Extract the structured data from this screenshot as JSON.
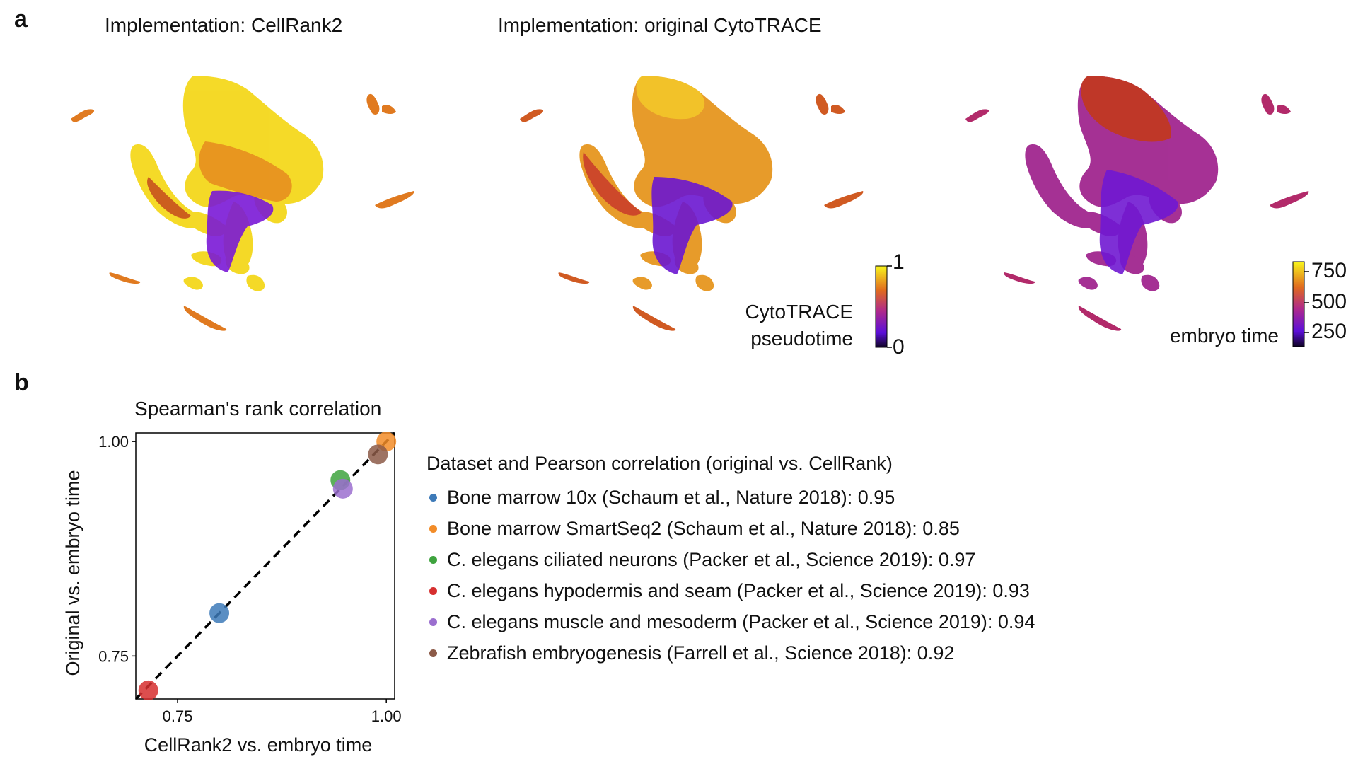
{
  "panel_a": {
    "letter": "a",
    "title_left": "Implementation: CellRank2",
    "title_mid": "Implementation: original CytoTRACE",
    "colorbar_pseudotime": {
      "label_line1": "CytoTRACE",
      "label_line2": "pseudotime",
      "tick_max": "1",
      "tick_min": "0"
    },
    "colorbar_embryo": {
      "label": "embryo time",
      "ticks": [
        "750",
        "500",
        "250"
      ]
    }
  },
  "panel_b": {
    "letter": "b",
    "legend_title": "Dataset and Pearson correlation (original vs. CellRank)",
    "legend_items": [
      {
        "label": "Bone marrow 10x (Schaum et al., Nature 2018): 0.95",
        "color": "#3d7ab8"
      },
      {
        "label": "Bone marrow SmartSeq2 (Schaum et al., Nature 2018): 0.85",
        "color": "#f28c28"
      },
      {
        "label": "C. elegans ciliated neurons (Packer et al., Science 2019): 0.97",
        "color": "#3ea33e"
      },
      {
        "label": "C. elegans hypodermis and seam (Packer et al., Science 2019): 0.93",
        "color": "#d62f2f"
      },
      {
        "label": "C. elegans muscle and mesoderm (Packer et al., Science 2019): 0.94",
        "color": "#9b6fcf"
      },
      {
        "label": "Zebrafish embryogenesis (Farrell et al., Science 2018): 0.92",
        "color": "#8c5a48"
      }
    ]
  },
  "chart_data": {
    "type": "scatter",
    "title": "Spearman's rank correlation",
    "xlabel": "CellRank2 vs. embryo time",
    "ylabel": "Original vs. embryo time",
    "xlim": [
      0.7,
      1.01
    ],
    "ylim": [
      0.7,
      1.01
    ],
    "xticks": [
      0.75,
      1.0
    ],
    "xtick_labels": [
      "0.75",
      "1.00"
    ],
    "yticks": [
      0.75,
      1.0
    ],
    "ytick_labels": [
      "0.75",
      "1.00"
    ],
    "diagonal": true,
    "grid": false,
    "points": [
      {
        "series": "Bone marrow 10x",
        "x": 0.8,
        "y": 0.8,
        "color": "#3d7ab8"
      },
      {
        "series": "Bone marrow SmartSeq2",
        "x": 1.0,
        "y": 1.0,
        "color": "#f28c28"
      },
      {
        "series": "C. elegans ciliated neurons",
        "x": 0.945,
        "y": 0.955,
        "color": "#3ea33e"
      },
      {
        "series": "C. elegans hypodermis and seam",
        "x": 0.715,
        "y": 0.71,
        "color": "#d62f2f"
      },
      {
        "series": "C. elegans muscle and mesoderm",
        "x": 0.948,
        "y": 0.945,
        "color": "#9b6fcf"
      },
      {
        "series": "Zebrafish embryogenesis",
        "x": 0.99,
        "y": 0.985,
        "color": "#8c5a48"
      }
    ]
  }
}
